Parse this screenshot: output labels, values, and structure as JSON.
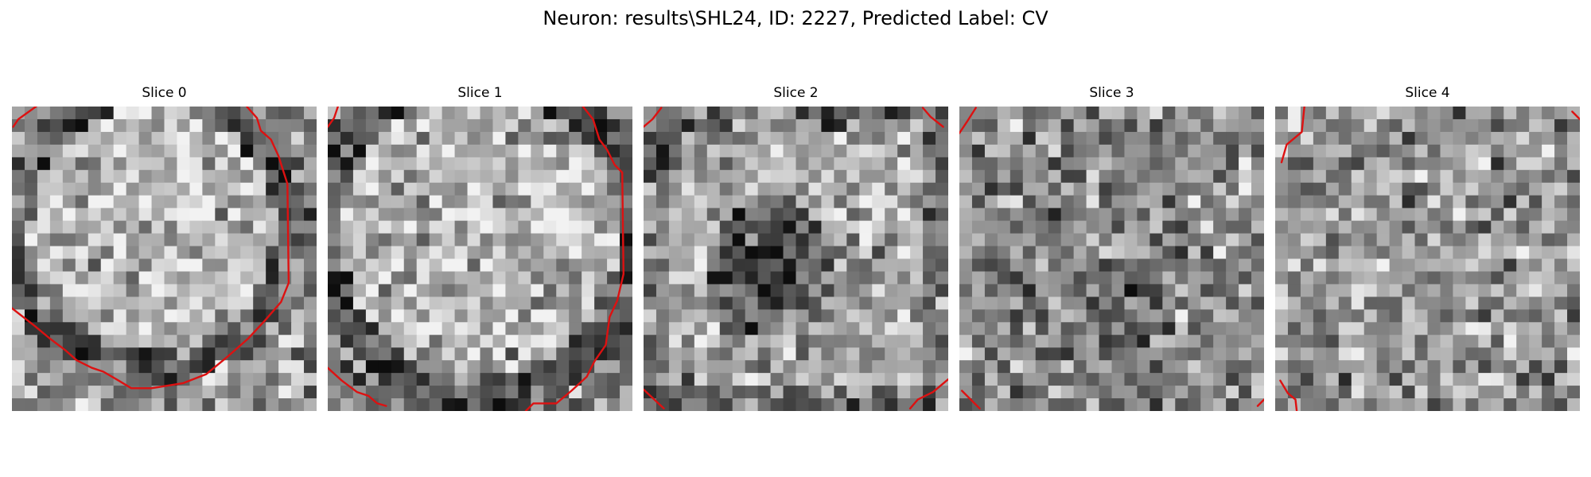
{
  "figure": {
    "title": "Neuron: results\\SHL24, ID: 2227, Predicted Label: CV"
  },
  "slices": [
    {
      "title": "Slice 0"
    },
    {
      "title": "Slice 1"
    },
    {
      "title": "Slice 2"
    },
    {
      "title": "Slice 3"
    },
    {
      "title": "Slice 4"
    }
  ],
  "colors": {
    "contour": "#dd1111",
    "background": "#ffffff"
  }
}
